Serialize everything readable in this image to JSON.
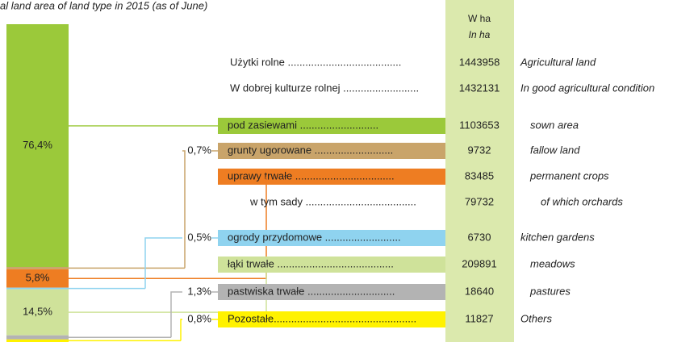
{
  "chart_data": {
    "type": "stacked-bar",
    "title": "al land area of land type in 2015 (as of June)",
    "column_header": {
      "pl": "W ha",
      "en": "In ha"
    },
    "rows": [
      {
        "pl": "Użytki rolne .......................................",
        "value": 1443958,
        "en": "Agricultural land"
      },
      {
        "pl": "W dobrej kulturze rolnej ..........................",
        "value": 1432131,
        "en": "In good agricultural condition"
      },
      {
        "pl": "pod zasiewami ...........................",
        "value": 1103653,
        "en": "sown area",
        "color": "#9bc93a",
        "share": 76.4,
        "share_label": "76,4%"
      },
      {
        "pl": "grunty ugorowane ...........................",
        "value": 9732,
        "en": "fallow land",
        "color": "#c9a46a",
        "share": 0.7,
        "share_label": "0,7%"
      },
      {
        "pl": "uprawy trwałe ..................................",
        "value": 83485,
        "en": "permanent crops",
        "color": "#ee7d22",
        "share": 5.8,
        "share_label": "5,8%"
      },
      {
        "pl": "w tym sady ......................................",
        "value": 79732,
        "en": "of which orchards"
      },
      {
        "pl": "ogrody przydomowe ..........................",
        "value": 6730,
        "en": "kitchen gardens",
        "color": "#8fd3ef",
        "share": 0.5,
        "share_label": "0,5%"
      },
      {
        "pl": "łąki trwałe ........................................",
        "value": 209891,
        "en": "meadows",
        "color": "#cfe29a",
        "share": 14.5,
        "share_label": "14,5%"
      },
      {
        "pl": "pastwiska trwałe ..............................",
        "value": 18640,
        "en": "pastures",
        "color": "#b3b3b3",
        "share": 1.3,
        "share_label": "1,3%"
      },
      {
        "pl": "Pozostałe.................................................",
        "value": 11827,
        "en": "Others",
        "color": "#fff200",
        "share": 0.8,
        "share_label": "0,8%"
      }
    ]
  }
}
